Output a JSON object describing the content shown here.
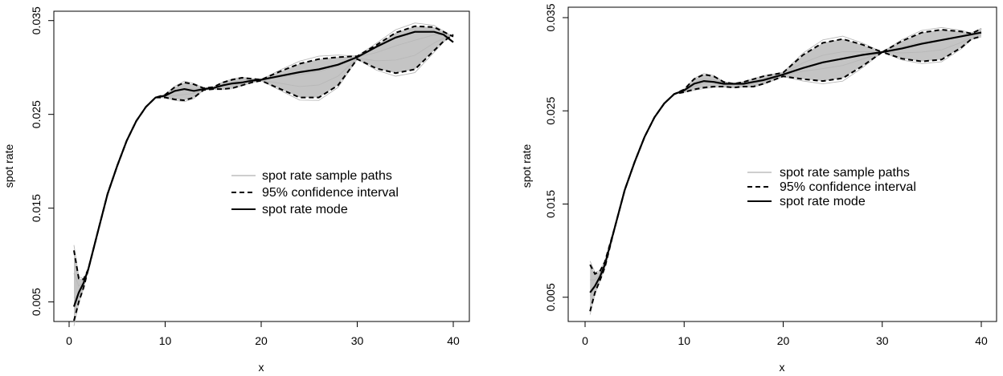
{
  "chart_data": [
    {
      "type": "line",
      "xlabel": "x",
      "ylabel": "spot rate",
      "xlim": [
        0,
        40
      ],
      "ylim": [
        0.003,
        0.036
      ],
      "x_ticks": [
        0,
        10,
        20,
        30,
        40
      ],
      "y_ticks": [
        0.005,
        0.015,
        0.025,
        0.035
      ],
      "x_tick_labels": [
        "0",
        "10",
        "20",
        "30",
        "40"
      ],
      "y_tick_labels": [
        "0.005",
        "0.015",
        "0.025",
        "0.035"
      ],
      "grid": false,
      "legend_position": "center-right",
      "legend": [
        {
          "label": "spot rate sample paths",
          "style": "gray-thin"
        },
        {
          "label": "95% confidence interval",
          "style": "black-dashed"
        },
        {
          "label": "spot rate mode",
          "style": "black-solid"
        }
      ],
      "series": [
        {
          "name": "spot rate mode",
          "x": [
            0.5,
            1,
            1.5,
            2,
            3,
            4,
            5,
            6,
            7,
            8,
            9,
            10,
            11,
            12,
            13,
            14,
            15,
            16,
            17,
            18,
            19,
            20,
            22,
            24,
            26,
            28,
            30,
            32,
            34,
            36,
            38,
            39,
            40
          ],
          "y": [
            0.0045,
            0.006,
            0.007,
            0.0085,
            0.0125,
            0.0165,
            0.0195,
            0.0222,
            0.0243,
            0.0258,
            0.0268,
            0.027,
            0.0275,
            0.0277,
            0.0275,
            0.0277,
            0.0278,
            0.0281,
            0.0283,
            0.0284,
            0.0286,
            0.0287,
            0.0291,
            0.0295,
            0.0298,
            0.0303,
            0.0311,
            0.0322,
            0.0332,
            0.0338,
            0.0338,
            0.0335,
            0.0327
          ]
        },
        {
          "name": "95% confidence interval",
          "x": [
            0.5,
            1,
            1.5,
            2,
            3,
            4,
            5,
            6,
            7,
            8,
            9,
            10,
            11,
            12,
            13,
            14,
            15,
            16,
            17,
            18,
            19,
            20,
            22,
            24,
            26,
            28,
            30,
            32,
            34,
            36,
            38,
            39,
            40
          ],
          "y": [
            0.0105,
            0.0075,
            0.0074,
            0.0085,
            0.0125,
            0.0165,
            0.0195,
            0.0222,
            0.0243,
            0.0258,
            0.0268,
            0.0271,
            0.0279,
            0.0284,
            0.0282,
            0.0278,
            0.0279,
            0.0284,
            0.0287,
            0.0289,
            0.0288,
            0.0287,
            0.0296,
            0.0304,
            0.0309,
            0.0311,
            0.0312,
            0.0324,
            0.0337,
            0.0344,
            0.0343,
            0.0338,
            0.0333
          ]
        },
        {
          "name": "95% confidence interval",
          "x": [
            0.5,
            1,
            1.5,
            2,
            3,
            4,
            5,
            6,
            7,
            8,
            9,
            10,
            11,
            12,
            13,
            14,
            15,
            16,
            17,
            18,
            19,
            20,
            22,
            24,
            26,
            28,
            30,
            32,
            34,
            36,
            38,
            39,
            40
          ],
          "y": [
            0.003,
            0.005,
            0.0065,
            0.0085,
            0.0125,
            0.0165,
            0.0195,
            0.0222,
            0.0243,
            0.0258,
            0.0268,
            0.0268,
            0.0266,
            0.0265,
            0.0268,
            0.0276,
            0.0277,
            0.0277,
            0.0278,
            0.0281,
            0.0284,
            0.0286,
            0.0277,
            0.0268,
            0.0268,
            0.0281,
            0.0309,
            0.0299,
            0.0294,
            0.0298,
            0.0318,
            0.0328,
            0.0335
          ]
        }
      ]
    },
    {
      "type": "line",
      "xlabel": "x",
      "ylabel": "spot rate",
      "xlim": [
        0,
        40
      ],
      "ylim": [
        0.003,
        0.035
      ],
      "x_ticks": [
        0,
        10,
        20,
        30,
        40
      ],
      "y_ticks": [
        0.005,
        0.015,
        0.025,
        0.035
      ],
      "x_tick_labels": [
        "0",
        "10",
        "20",
        "30",
        "40"
      ],
      "y_tick_labels": [
        "0.005",
        "0.015",
        "0.025",
        "0.035"
      ],
      "grid": false,
      "legend_position": "center-right",
      "legend": [
        {
          "label": "spot rate sample paths",
          "style": "gray-thin"
        },
        {
          "label": "95% confidence interval",
          "style": "black-dashed"
        },
        {
          "label": "spot rate mode",
          "style": "black-solid"
        }
      ],
      "series": [
        {
          "name": "spot rate mode",
          "x": [
            0.5,
            1,
            1.5,
            2,
            3,
            4,
            5,
            6,
            7,
            8,
            9,
            10,
            11,
            12,
            13,
            14,
            15,
            16,
            17,
            18,
            19,
            20,
            22,
            24,
            26,
            28,
            30,
            32,
            34,
            36,
            38,
            39,
            40
          ],
          "y": [
            0.0055,
            0.0062,
            0.0072,
            0.0085,
            0.0125,
            0.0165,
            0.0195,
            0.0222,
            0.0243,
            0.0258,
            0.0268,
            0.0272,
            0.0279,
            0.0282,
            0.0281,
            0.0279,
            0.0279,
            0.0279,
            0.0281,
            0.0283,
            0.0286,
            0.0289,
            0.0296,
            0.0302,
            0.0306,
            0.031,
            0.0313,
            0.0317,
            0.0322,
            0.0326,
            0.033,
            0.0332,
            0.0334
          ]
        },
        {
          "name": "95% confidence interval",
          "x": [
            0.5,
            1,
            1.5,
            2,
            3,
            4,
            5,
            6,
            7,
            8,
            9,
            10,
            11,
            12,
            13,
            14,
            15,
            16,
            17,
            18,
            19,
            20,
            22,
            24,
            26,
            28,
            30,
            32,
            34,
            36,
            38,
            39,
            40
          ],
          "y": [
            0.0085,
            0.0075,
            0.0078,
            0.0088,
            0.0125,
            0.0165,
            0.0195,
            0.0222,
            0.0243,
            0.0258,
            0.0268,
            0.0273,
            0.0284,
            0.0289,
            0.0287,
            0.0281,
            0.0279,
            0.0281,
            0.0284,
            0.0287,
            0.0289,
            0.0291,
            0.031,
            0.0323,
            0.0327,
            0.0321,
            0.0313,
            0.0325,
            0.0334,
            0.0337,
            0.0335,
            0.0333,
            0.0338
          ]
        },
        {
          "name": "95% confidence interval",
          "x": [
            0.5,
            1,
            1.5,
            2,
            3,
            4,
            5,
            6,
            7,
            8,
            9,
            10,
            11,
            12,
            13,
            14,
            15,
            16,
            17,
            18,
            19,
            20,
            22,
            24,
            26,
            28,
            30,
            32,
            34,
            36,
            38,
            39,
            40
          ],
          "y": [
            0.0035,
            0.0055,
            0.0068,
            0.0082,
            0.0125,
            0.0165,
            0.0195,
            0.0222,
            0.0243,
            0.0258,
            0.0268,
            0.027,
            0.0273,
            0.0275,
            0.0276,
            0.0276,
            0.0275,
            0.0276,
            0.0276,
            0.0279,
            0.0283,
            0.0287,
            0.0284,
            0.0282,
            0.0285,
            0.0298,
            0.0313,
            0.0306,
            0.0303,
            0.0305,
            0.0318,
            0.0327,
            0.033
          ]
        }
      ]
    }
  ]
}
